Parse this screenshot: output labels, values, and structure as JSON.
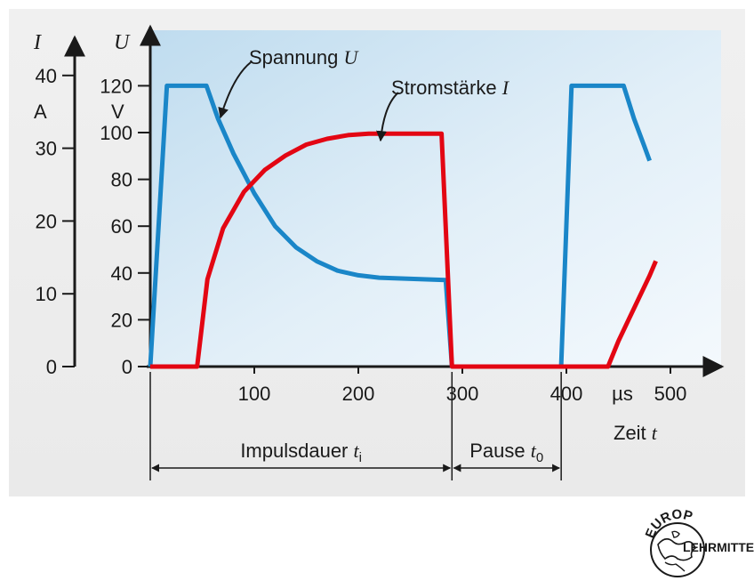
{
  "chart_data": {
    "type": "line",
    "title": "",
    "x_axis": {
      "label": "Zeit",
      "label_var": "t",
      "unit": "µs",
      "range": [
        0,
        540
      ],
      "ticks": [
        100,
        200,
        300,
        400,
        500
      ]
    },
    "y_axis_current": {
      "var": "I",
      "unit": "A",
      "range": [
        0,
        45
      ],
      "ticks": [
        0,
        10,
        20,
        30,
        40
      ]
    },
    "y_axis_voltage": {
      "var": "U",
      "unit": "V",
      "range": [
        0,
        140
      ],
      "ticks": [
        0,
        20,
        40,
        60,
        80,
        100,
        120
      ]
    },
    "series": [
      {
        "name": "Spannung",
        "var": "U",
        "axis": "voltage",
        "color": "#1a86c8",
        "points": [
          [
            0,
            0
          ],
          [
            16,
            120
          ],
          [
            54,
            120
          ],
          [
            65,
            106
          ],
          [
            80,
            91
          ],
          [
            100,
            74
          ],
          [
            120,
            60
          ],
          [
            140,
            51
          ],
          [
            160,
            45
          ],
          [
            180,
            41
          ],
          [
            200,
            39
          ],
          [
            220,
            38
          ],
          [
            284,
            37
          ],
          [
            290,
            0
          ],
          [
            395,
            0
          ],
          [
            405,
            120
          ],
          [
            455,
            120
          ],
          [
            465,
            106
          ],
          [
            475,
            94
          ],
          [
            480,
            88
          ]
        ]
      },
      {
        "name": "Stromstärke",
        "var": "I",
        "axis": "current",
        "color": "#e30613",
        "points": [
          [
            0,
            0
          ],
          [
            45,
            0
          ],
          [
            55,
            12
          ],
          [
            70,
            19
          ],
          [
            90,
            24
          ],
          [
            110,
            27
          ],
          [
            130,
            29
          ],
          [
            150,
            30.5
          ],
          [
            170,
            31.3
          ],
          [
            190,
            31.8
          ],
          [
            210,
            32
          ],
          [
            280,
            32
          ],
          [
            290,
            0
          ],
          [
            440,
            0
          ],
          [
            450,
            3.5
          ],
          [
            460,
            6.5
          ],
          [
            470,
            9.5
          ],
          [
            480,
            12.5
          ],
          [
            486,
            14.5
          ]
        ]
      }
    ],
    "annotations": {
      "voltage_label": "Spannung",
      "current_label": "Stromstärke",
      "impulse_label": "Impulsdauer",
      "impulse_var": "t",
      "impulse_sub": "i",
      "impulse_range": [
        0,
        290
      ],
      "pause_label": "Pause",
      "pause_var": "t",
      "pause_sub": "0",
      "pause_range": [
        290,
        395
      ]
    },
    "grid": false,
    "legend": "none"
  },
  "logo": {
    "top": "EUROPA",
    "bottom": "LEHRMITTEL"
  }
}
